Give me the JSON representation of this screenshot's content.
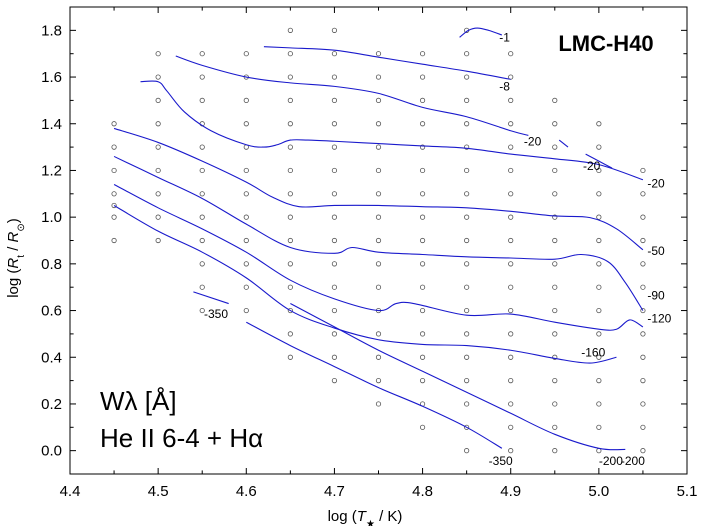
{
  "chart_data": {
    "type": "line",
    "title": "LMC-H40",
    "xlabel": "log (T* / K)",
    "ylabel": "log (Rt / R⊙)",
    "xlim": [
      4.4,
      5.1
    ],
    "ylim": [
      -0.1,
      1.9
    ],
    "xticks": [
      4.4,
      4.5,
      4.6,
      4.7,
      4.8,
      4.9,
      5.0,
      5.1
    ],
    "yticks": [
      0.0,
      0.2,
      0.4,
      0.6,
      0.8,
      1.0,
      1.2,
      1.4,
      1.6,
      1.8
    ],
    "xtick_labels": [
      "4.4",
      "4.5",
      "4.6",
      "4.7",
      "4.8",
      "4.9",
      "5.0",
      "5.1"
    ],
    "ytick_labels": [
      "0.0",
      "0.2",
      "0.4",
      "0.6",
      "0.8",
      "1.0",
      "1.2",
      "1.4",
      "1.6",
      "1.8"
    ],
    "legend_line1": "Wλ [Å]",
    "legend_line2": "He II 6-4 + Hα",
    "grid_points": [
      {
        "x": 4.45,
        "ys": [
          0.9,
          1.0,
          1.05,
          1.1,
          1.2,
          1.3,
          1.4
        ]
      },
      {
        "x": 4.5,
        "ys": [
          0.9,
          1.0,
          1.1,
          1.2,
          1.3,
          1.4,
          1.5,
          1.6,
          1.7
        ]
      },
      {
        "x": 4.55,
        "ys": [
          0.6,
          0.7,
          0.8,
          0.9,
          1.0,
          1.1,
          1.2,
          1.3,
          1.4,
          1.5,
          1.6,
          1.7
        ]
      },
      {
        "x": 4.6,
        "ys": [
          0.6,
          0.7,
          0.8,
          0.9,
          1.0,
          1.1,
          1.2,
          1.3,
          1.4,
          1.5,
          1.6,
          1.7
        ]
      },
      {
        "x": 4.65,
        "ys": [
          0.4,
          0.5,
          0.6,
          0.7,
          0.8,
          0.9,
          1.0,
          1.1,
          1.2,
          1.3,
          1.4,
          1.5,
          1.6,
          1.7,
          1.8
        ]
      },
      {
        "x": 4.7,
        "ys": [
          0.3,
          0.4,
          0.5,
          0.6,
          0.7,
          0.8,
          0.9,
          1.0,
          1.1,
          1.2,
          1.3,
          1.4,
          1.5,
          1.6,
          1.7,
          1.8
        ]
      },
      {
        "x": 4.75,
        "ys": [
          0.2,
          0.3,
          0.4,
          0.5,
          0.6,
          0.7,
          0.8,
          0.9,
          1.0,
          1.1,
          1.2,
          1.3,
          1.4,
          1.5,
          1.6,
          1.7
        ]
      },
      {
        "x": 4.8,
        "ys": [
          0.1,
          0.2,
          0.3,
          0.4,
          0.5,
          0.6,
          0.7,
          0.8,
          0.9,
          1.0,
          1.1,
          1.2,
          1.3,
          1.4,
          1.5,
          1.6,
          1.7
        ]
      },
      {
        "x": 4.85,
        "ys": [
          0.0,
          0.1,
          0.2,
          0.3,
          0.4,
          0.5,
          0.6,
          0.7,
          0.8,
          0.9,
          1.0,
          1.1,
          1.2,
          1.3,
          1.4,
          1.5,
          1.6,
          1.7,
          1.8
        ]
      },
      {
        "x": 4.9,
        "ys": [
          0.0,
          0.1,
          0.2,
          0.3,
          0.4,
          0.5,
          0.6,
          0.7,
          0.8,
          0.9,
          1.0,
          1.1,
          1.2,
          1.3,
          1.4,
          1.5,
          1.6,
          1.7
        ]
      },
      {
        "x": 4.95,
        "ys": [
          0.0,
          0.1,
          0.2,
          0.3,
          0.4,
          0.5,
          0.6,
          0.7,
          0.8,
          0.9,
          1.0,
          1.1,
          1.2,
          1.3,
          1.4,
          1.5
        ]
      },
      {
        "x": 5.0,
        "ys": [
          0.0,
          0.1,
          0.2,
          0.3,
          0.4,
          0.5,
          0.6,
          0.7,
          0.8,
          0.9,
          1.0,
          1.1,
          1.2,
          1.3,
          1.4
        ]
      },
      {
        "x": 5.05,
        "ys": [
          0.0,
          0.1,
          0.2,
          0.3,
          0.4,
          0.5,
          0.6,
          0.7,
          0.8,
          0.9,
          1.0,
          1.1,
          1.2
        ]
      }
    ],
    "series": [
      {
        "label": "-1",
        "points": [
          [
            4.842,
            1.77
          ],
          [
            4.852,
            1.8
          ],
          [
            4.862,
            1.81
          ],
          [
            4.875,
            1.8
          ],
          [
            4.89,
            1.78
          ]
        ]
      },
      {
        "label": "-8",
        "points": [
          [
            4.62,
            1.73
          ],
          [
            4.65,
            1.725
          ],
          [
            4.7,
            1.715
          ],
          [
            4.75,
            1.685
          ],
          [
            4.8,
            1.655
          ],
          [
            4.85,
            1.625
          ],
          [
            4.9,
            1.59
          ]
        ]
      },
      {
        "label": "-20",
        "points": [
          [
            4.52,
            1.69
          ],
          [
            4.55,
            1.65
          ],
          [
            4.6,
            1.6
          ],
          [
            4.65,
            1.575
          ],
          [
            4.7,
            1.56
          ],
          [
            4.75,
            1.53
          ],
          [
            4.8,
            1.47
          ],
          [
            4.85,
            1.43
          ],
          [
            4.9,
            1.37
          ],
          [
            4.92,
            1.35
          ]
        ]
      },
      {
        "label": "-20",
        "points": [
          [
            4.955,
            1.33
          ],
          [
            4.965,
            1.3
          ]
        ]
      },
      {
        "label": "-20",
        "points": [
          [
            4.985,
            1.27
          ],
          [
            5.0,
            1.24
          ],
          [
            5.015,
            1.21
          ]
        ]
      },
      {
        "label": "-20",
        "points": [
          [
            4.48,
            1.58
          ],
          [
            4.5,
            1.58
          ],
          [
            4.51,
            1.54
          ],
          [
            4.53,
            1.45
          ],
          [
            4.56,
            1.37
          ],
          [
            4.6,
            1.31
          ],
          [
            4.62,
            1.3
          ],
          [
            4.635,
            1.31
          ],
          [
            4.65,
            1.33
          ],
          [
            4.67,
            1.33
          ],
          [
            4.7,
            1.325
          ],
          [
            4.75,
            1.315
          ],
          [
            4.8,
            1.305
          ],
          [
            4.85,
            1.295
          ],
          [
            4.9,
            1.27
          ],
          [
            4.95,
            1.25
          ],
          [
            5.0,
            1.225
          ],
          [
            5.05,
            1.16
          ]
        ]
      },
      {
        "label": "-50",
        "points": [
          [
            4.45,
            1.38
          ],
          [
            4.5,
            1.32
          ],
          [
            4.55,
            1.24
          ],
          [
            4.6,
            1.15
          ],
          [
            4.63,
            1.085
          ],
          [
            4.66,
            1.045
          ],
          [
            4.7,
            1.05
          ],
          [
            4.75,
            1.05
          ],
          [
            4.8,
            1.045
          ],
          [
            4.85,
            1.04
          ],
          [
            4.9,
            1.025
          ],
          [
            4.95,
            1.005
          ],
          [
            4.99,
            0.998
          ],
          [
            5.02,
            0.95
          ],
          [
            5.05,
            0.86
          ]
        ]
      },
      {
        "label": "-90",
        "points": [
          [
            4.45,
            1.26
          ],
          [
            4.5,
            1.17
          ],
          [
            4.55,
            1.08
          ],
          [
            4.6,
            0.97
          ],
          [
            4.65,
            0.87
          ],
          [
            4.7,
            0.845
          ],
          [
            4.72,
            0.87
          ],
          [
            4.75,
            0.85
          ],
          [
            4.8,
            0.84
          ],
          [
            4.85,
            0.83
          ],
          [
            4.9,
            0.825
          ],
          [
            4.95,
            0.82
          ],
          [
            4.98,
            0.84
          ],
          [
            5.01,
            0.81
          ],
          [
            5.03,
            0.72
          ],
          [
            5.05,
            0.6
          ]
        ]
      },
      {
        "label": "-120",
        "points": [
          [
            4.45,
            1.14
          ],
          [
            4.5,
            1.04
          ],
          [
            4.55,
            0.95
          ],
          [
            4.6,
            0.85
          ],
          [
            4.65,
            0.73
          ],
          [
            4.7,
            0.65
          ],
          [
            4.75,
            0.6
          ],
          [
            4.77,
            0.63
          ],
          [
            4.79,
            0.63
          ],
          [
            4.85,
            0.58
          ],
          [
            4.9,
            0.585
          ],
          [
            4.95,
            0.55
          ],
          [
            5.0,
            0.52
          ],
          [
            5.02,
            0.52
          ],
          [
            5.035,
            0.56
          ],
          [
            5.05,
            0.53
          ]
        ]
      },
      {
        "label": "-160",
        "points": [
          [
            4.45,
            1.05
          ],
          [
            4.5,
            0.94
          ],
          [
            4.55,
            0.85
          ],
          [
            4.6,
            0.74
          ],
          [
            4.65,
            0.6
          ],
          [
            4.7,
            0.525
          ],
          [
            4.75,
            0.475
          ],
          [
            4.8,
            0.455
          ],
          [
            4.85,
            0.45
          ],
          [
            4.9,
            0.43
          ],
          [
            4.95,
            0.395
          ],
          [
            4.99,
            0.375
          ],
          [
            5.02,
            0.4
          ]
        ]
      },
      {
        "label": "-350",
        "points": [
          [
            4.54,
            0.68
          ],
          [
            4.58,
            0.63
          ]
        ]
      },
      {
        "label": "-350",
        "points": [
          [
            4.6,
            0.55
          ],
          [
            4.65,
            0.45
          ],
          [
            4.7,
            0.36
          ],
          [
            4.75,
            0.27
          ],
          [
            4.8,
            0.19
          ],
          [
            4.85,
            0.1
          ],
          [
            4.89,
            0.01
          ]
        ]
      },
      {
        "label": "-200",
        "points": [
          [
            4.65,
            0.63
          ],
          [
            4.7,
            0.53
          ],
          [
            4.75,
            0.43
          ],
          [
            4.8,
            0.34
          ],
          [
            4.85,
            0.25
          ],
          [
            4.9,
            0.16
          ],
          [
            4.95,
            0.07
          ],
          [
            5.0,
            0.01
          ],
          [
            5.03,
            0.005
          ]
        ]
      }
    ],
    "contour_labels": [
      {
        "text": "-1",
        "x": 4.887,
        "y": 1.77
      },
      {
        "text": "-8",
        "x": 4.887,
        "y": 1.56
      },
      {
        "text": "-20",
        "x": 4.915,
        "y": 1.325
      },
      {
        "text": "-20",
        "x": 4.982,
        "y": 1.22
      },
      {
        "text": "-20",
        "x": 5.055,
        "y": 1.145
      },
      {
        "text": "-50",
        "x": 5.055,
        "y": 0.855
      },
      {
        "text": "-90",
        "x": 5.055,
        "y": 0.665
      },
      {
        "text": "-120",
        "x": 5.055,
        "y": 0.565
      },
      {
        "text": "-160",
        "x": 4.98,
        "y": 0.42
      },
      {
        "text": "-350",
        "x": 4.552,
        "y": 0.585
      },
      {
        "text": "-350",
        "x": 4.875,
        "y": -0.045
      },
      {
        "text": "-200",
        "x": 5.0,
        "y": -0.045
      },
      {
        "text": "-200",
        "x": 5.025,
        "y": -0.045
      }
    ]
  }
}
